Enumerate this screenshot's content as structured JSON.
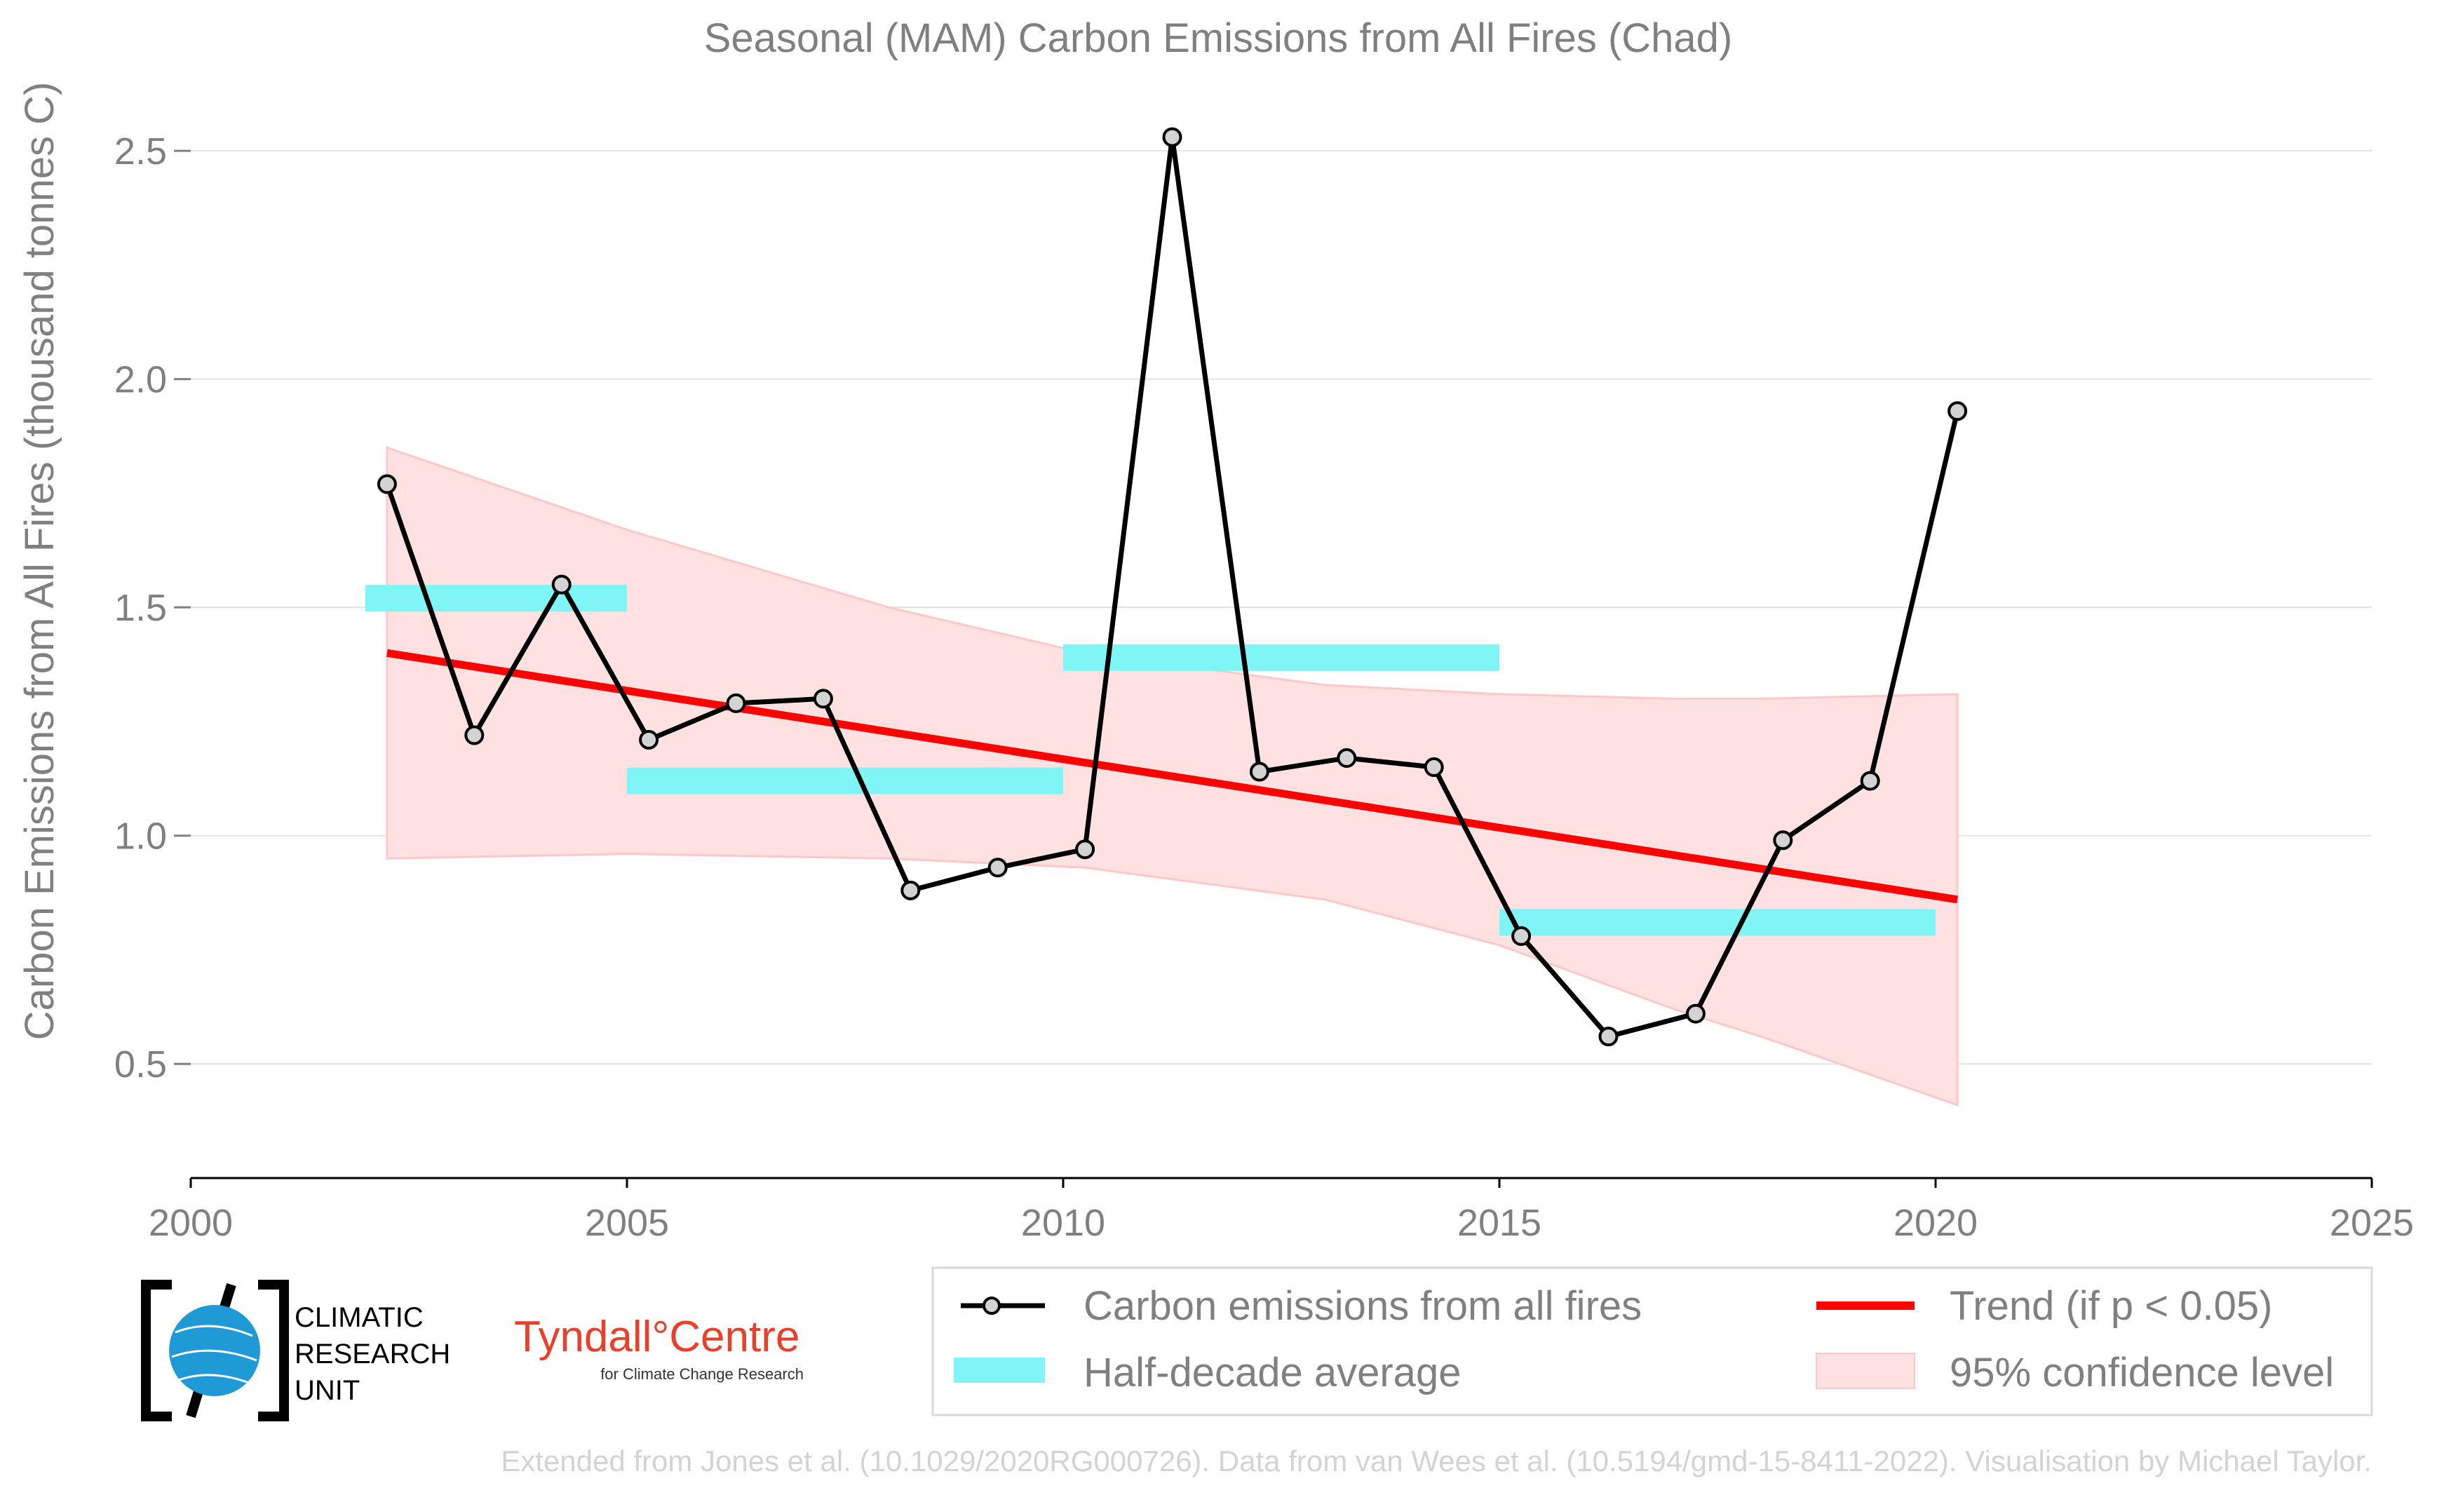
{
  "chart_data": {
    "type": "line",
    "title": "Seasonal (MAM) Carbon Emissions from All Fires (Chad)",
    "xlabel": "",
    "ylabel": "Carbon Emissions from All Fires (thousand tonnes C)",
    "xlim": [
      2000,
      2025
    ],
    "ylim": [
      0.25,
      2.6
    ],
    "x_ticks": [
      2000,
      2005,
      2010,
      2015,
      2020,
      2025
    ],
    "x_tick_labels": [
      "2000",
      "2005",
      "2010",
      "2015",
      "2020",
      "2025"
    ],
    "y_ticks": [
      0.5,
      1.0,
      1.5,
      2.0,
      2.5
    ],
    "y_tick_labels": [
      "0.5",
      "1.0",
      "1.5",
      "2.0",
      "2.5"
    ],
    "grid": "horizontal",
    "series": [
      {
        "name": "Carbon emissions from all fires",
        "color": "#000000",
        "x": [
          2002.25,
          2003.25,
          2004.25,
          2005.25,
          2006.25,
          2007.25,
          2008.25,
          2009.25,
          2010.25,
          2011.25,
          2012.25,
          2013.25,
          2014.25,
          2015.25,
          2016.25,
          2017.25,
          2018.25,
          2019.25,
          2020.25
        ],
        "values": [
          1.77,
          1.22,
          1.55,
          1.21,
          1.29,
          1.3,
          0.88,
          0.93,
          0.97,
          2.53,
          1.14,
          1.17,
          1.15,
          0.78,
          0.56,
          0.61,
          0.99,
          1.12,
          1.93
        ]
      }
    ],
    "half_decade_average": {
      "name": "Half-decade average",
      "color": "#7ff5f5",
      "segments": [
        {
          "x_start": 2002,
          "x_end": 2005,
          "value": 1.52
        },
        {
          "x_start": 2005,
          "x_end": 2010,
          "value": 1.12
        },
        {
          "x_start": 2010,
          "x_end": 2015,
          "value": 1.39
        },
        {
          "x_start": 2015,
          "x_end": 2020,
          "value": 0.81
        }
      ]
    },
    "trend": {
      "name": "Trend (if p < 0.05)",
      "color": "#ff0000",
      "x": [
        2002.25,
        2020.25
      ],
      "values": [
        1.4,
        0.86
      ]
    },
    "confidence": {
      "name": "95% confidence level",
      "color": "#ffc8c8",
      "x": [
        2002.25,
        2005,
        2008,
        2010.25,
        2013,
        2015,
        2017,
        2018,
        2020.25
      ],
      "upper": [
        1.85,
        1.67,
        1.5,
        1.4,
        1.33,
        1.31,
        1.3,
        1.3,
        1.31
      ],
      "lower": [
        0.95,
        0.96,
        0.95,
        0.93,
        0.86,
        0.76,
        0.62,
        0.56,
        0.41
      ]
    },
    "legend_position": "bottom-right"
  },
  "logos": {
    "cru_lines": [
      "CLIMATIC",
      "RESEARCH",
      "UNIT"
    ],
    "tyndall_name": "Tyndall°Centre",
    "tyndall_sub": "for Climate Change Research"
  },
  "footer": "Extended from Jones et al. (10.1029/2020RG000726). Data from van Wees et al. (10.5194/gmd-15-8411-2022). Visualisation by Michael Taylor."
}
